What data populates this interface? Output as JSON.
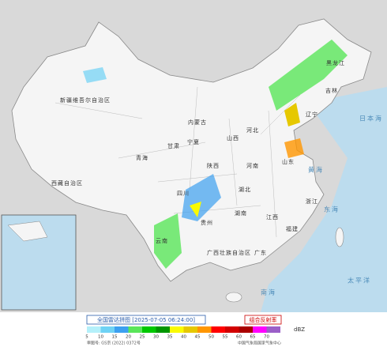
{
  "title": "全国雷达拼图 [2025-07-05 06:24:00]",
  "product": "组合反射率",
  "legend": {
    "unit": "dBZ",
    "values": [
      5,
      10,
      15,
      20,
      25,
      30,
      35,
      40,
      45,
      50,
      55,
      60,
      65,
      70
    ],
    "colors": [
      "#b4f0fa",
      "#6ed2f5",
      "#3ca0f0",
      "#5ae65a",
      "#00c800",
      "#009600",
      "#fafa00",
      "#e6c800",
      "#ff9600",
      "#ff0000",
      "#d20000",
      "#aa0000",
      "#ff00ff",
      "#9b5fc8"
    ]
  },
  "regions": [
    "新疆维吾尔自治区",
    "西藏自治区",
    "青海",
    "内蒙古",
    "甘肃",
    "四川",
    "云南",
    "贵州",
    "广西壮族自治区",
    "湖南",
    "湖北",
    "河南",
    "山东",
    "山西",
    "陕西",
    "河北",
    "辽宁",
    "吉林",
    "黑龙江",
    "江西",
    "浙江",
    "福建",
    "广东",
    "宁夏"
  ],
  "seas": [
    "黄海",
    "东海",
    "南海",
    "太平洋",
    "日本海"
  ],
  "approval": "审图号: GS京 (2022) 0372号",
  "credit": "中国气象局国家气象中心"
}
